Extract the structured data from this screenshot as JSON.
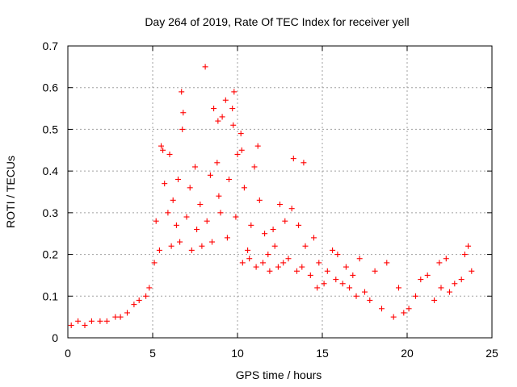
{
  "chart_data": {
    "type": "scatter",
    "title": "Day 264 of 2019, Rate Of TEC Index for receiver yell",
    "xlabel": "GPS time / hours",
    "ylabel": "ROTI / TECUs",
    "xlim": [
      0,
      25
    ],
    "ylim": [
      0,
      0.7
    ],
    "xticks": [
      0,
      5,
      10,
      15,
      20,
      25
    ],
    "yticks": [
      0,
      0.1,
      0.2,
      0.3,
      0.4,
      0.5,
      0.6,
      0.7
    ],
    "grid": true,
    "marker": "+",
    "color": "#ff0000",
    "series": [
      {
        "name": "ROTI",
        "points": [
          [
            8.1,
            0.65
          ],
          [
            6.7,
            0.59
          ],
          [
            9.8,
            0.59
          ],
          [
            9.3,
            0.57
          ],
          [
            6.8,
            0.54
          ],
          [
            8.6,
            0.55
          ],
          [
            9.1,
            0.53
          ],
          [
            9.7,
            0.55
          ],
          [
            10.2,
            0.49
          ],
          [
            6.75,
            0.5
          ],
          [
            8.85,
            0.52
          ],
          [
            9.75,
            0.51
          ],
          [
            10.25,
            0.45
          ],
          [
            8.8,
            0.42
          ],
          [
            5.5,
            0.46
          ],
          [
            11.2,
            0.46
          ],
          [
            13.3,
            0.43
          ],
          [
            13.9,
            0.42
          ],
          [
            6.0,
            0.44
          ],
          [
            5.6,
            0.45
          ],
          [
            7.5,
            0.41
          ],
          [
            10.0,
            0.44
          ],
          [
            11.0,
            0.41
          ],
          [
            5.7,
            0.37
          ],
          [
            6.5,
            0.38
          ],
          [
            7.2,
            0.36
          ],
          [
            8.4,
            0.39
          ],
          [
            9.5,
            0.38
          ],
          [
            12.5,
            0.32
          ],
          [
            13.2,
            0.31
          ],
          [
            6.2,
            0.33
          ],
          [
            7.8,
            0.32
          ],
          [
            8.9,
            0.34
          ],
          [
            10.4,
            0.36
          ],
          [
            11.3,
            0.33
          ],
          [
            5.2,
            0.28
          ],
          [
            5.9,
            0.3
          ],
          [
            6.4,
            0.27
          ],
          [
            7.0,
            0.29
          ],
          [
            7.6,
            0.26
          ],
          [
            8.2,
            0.28
          ],
          [
            9.0,
            0.3
          ],
          [
            9.9,
            0.29
          ],
          [
            10.8,
            0.27
          ],
          [
            11.6,
            0.25
          ],
          [
            12.1,
            0.26
          ],
          [
            12.8,
            0.28
          ],
          [
            13.6,
            0.27
          ],
          [
            14.0,
            0.22
          ],
          [
            14.5,
            0.24
          ],
          [
            15.6,
            0.21
          ],
          [
            15.9,
            0.2
          ],
          [
            17.2,
            0.19
          ],
          [
            18.1,
            0.16
          ],
          [
            18.8,
            0.18
          ],
          [
            22.3,
            0.19
          ],
          [
            23.4,
            0.2
          ],
          [
            23.6,
            0.22
          ],
          [
            21.9,
            0.18
          ],
          [
            20.8,
            0.14
          ],
          [
            21.2,
            0.15
          ],
          [
            19.5,
            0.12
          ],
          [
            16.4,
            0.17
          ],
          [
            16.8,
            0.15
          ],
          [
            14.8,
            0.18
          ],
          [
            15.3,
            0.16
          ],
          [
            12.2,
            0.22
          ],
          [
            11.8,
            0.2
          ],
          [
            10.6,
            0.21
          ],
          [
            9.4,
            0.24
          ],
          [
            8.5,
            0.23
          ],
          [
            7.9,
            0.22
          ],
          [
            7.3,
            0.21
          ],
          [
            6.6,
            0.23
          ],
          [
            6.1,
            0.22
          ],
          [
            5.4,
            0.21
          ],
          [
            5.1,
            0.18
          ],
          [
            4.8,
            0.12
          ],
          [
            4.6,
            0.1
          ],
          [
            4.2,
            0.09
          ],
          [
            3.9,
            0.08
          ],
          [
            3.5,
            0.06
          ],
          [
            3.1,
            0.05
          ],
          [
            2.8,
            0.05
          ],
          [
            2.3,
            0.04
          ],
          [
            1.9,
            0.04
          ],
          [
            1.4,
            0.04
          ],
          [
            1.0,
            0.03
          ],
          [
            0.6,
            0.04
          ],
          [
            0.2,
            0.03
          ],
          [
            23.8,
            0.16
          ],
          [
            23.2,
            0.14
          ],
          [
            22.8,
            0.13
          ],
          [
            22.5,
            0.11
          ],
          [
            22.0,
            0.12
          ],
          [
            21.6,
            0.09
          ],
          [
            20.5,
            0.1
          ],
          [
            20.1,
            0.07
          ],
          [
            19.8,
            0.06
          ],
          [
            19.2,
            0.05
          ],
          [
            18.5,
            0.07
          ],
          [
            17.8,
            0.09
          ],
          [
            17.5,
            0.11
          ],
          [
            17.0,
            0.1
          ],
          [
            16.6,
            0.12
          ],
          [
            16.2,
            0.13
          ],
          [
            15.8,
            0.14
          ],
          [
            15.1,
            0.13
          ],
          [
            14.7,
            0.12
          ],
          [
            14.3,
            0.15
          ],
          [
            13.8,
            0.17
          ],
          [
            13.5,
            0.16
          ],
          [
            13.0,
            0.19
          ],
          [
            12.7,
            0.18
          ],
          [
            12.4,
            0.17
          ],
          [
            11.9,
            0.16
          ],
          [
            11.5,
            0.18
          ],
          [
            11.1,
            0.17
          ],
          [
            10.7,
            0.19
          ],
          [
            10.3,
            0.18
          ]
        ]
      }
    ]
  }
}
